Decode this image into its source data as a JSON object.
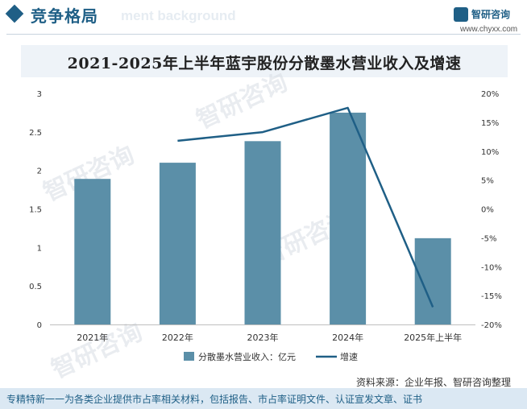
{
  "header": {
    "section_title": "竞争格局",
    "watermark_text": "ment background",
    "brand_name": "智研咨询",
    "brand_url": "www.chyxx.com"
  },
  "watermark": "智研咨询",
  "chart_data": {
    "type": "bar",
    "title": "2021-2025年上半年蓝宇股份分散墨水营业收入及增速",
    "categories": [
      "2021年",
      "2022年",
      "2023年",
      "2024年",
      "2025年上半年"
    ],
    "series": [
      {
        "name": "分散墨水营业收入：亿元",
        "type": "bar",
        "axis": "left",
        "color": "#5b8fa8",
        "values": [
          1.89,
          2.1,
          2.38,
          2.75,
          1.12
        ]
      },
      {
        "name": "增速",
        "type": "line",
        "axis": "right",
        "color": "#1f5f86",
        "values": [
          null,
          11.8,
          13.3,
          17.5,
          -17.0
        ]
      }
    ],
    "y_left": {
      "min": 0,
      "max": 3,
      "ticks": [
        "0",
        "0.5",
        "1",
        "1.5",
        "2",
        "2.5",
        "3"
      ]
    },
    "y_right": {
      "min": -20,
      "max": 20,
      "ticks": [
        "-20%",
        "-15%",
        "-10%",
        "-5%",
        "0%",
        "5%",
        "10%",
        "15%",
        "20%"
      ]
    },
    "legend_position": "bottom"
  },
  "source": "资料来源：企业年报、智研咨询整理",
  "footer": "专精特新一一为各类企业提供市占率相关材料，包括报告、市占率证明文件、认证宣发文章、证书"
}
